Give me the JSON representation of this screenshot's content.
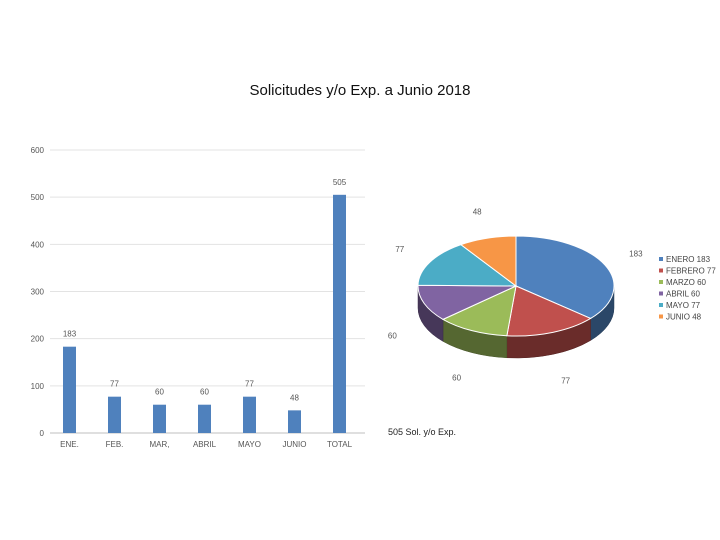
{
  "title": "Solicitudes y/o Exp. a Junio 2018",
  "caption": "505 Sol. y/o Exp.",
  "chart_data": [
    {
      "type": "bar",
      "categories": [
        "ENE.",
        "FEB.",
        "MAR,",
        "ABRIL",
        "MAYO",
        "JUNIO",
        "TOTAL"
      ],
      "values": [
        183,
        77,
        60,
        60,
        77,
        48,
        505
      ],
      "ylim": [
        0,
        600
      ],
      "yticks": [
        "0",
        "100",
        "200",
        "300",
        "400",
        "500",
        "600"
      ],
      "grid": true,
      "color": "#4f81bd"
    },
    {
      "type": "pie",
      "style": "3d",
      "labels": [
        "ENERO",
        "FEBRERO",
        "MARZO",
        "ABRIL",
        "MAYO",
        "JUNIO"
      ],
      "values": [
        183,
        77,
        60,
        60,
        77,
        48
      ],
      "legend_labels": [
        "ENERO 183",
        "FEBRERO 77",
        "MARZO 60",
        "ABRIL 60",
        "MAYO 77",
        "JUNIO 48"
      ],
      "data_labels": [
        "183",
        "77",
        "60",
        "60",
        "77",
        "48"
      ],
      "colors": [
        "#4f81bd",
        "#c0504d",
        "#9bbb59",
        "#8064a2",
        "#4bacc6",
        "#f79646"
      ],
      "legend": "right"
    }
  ]
}
